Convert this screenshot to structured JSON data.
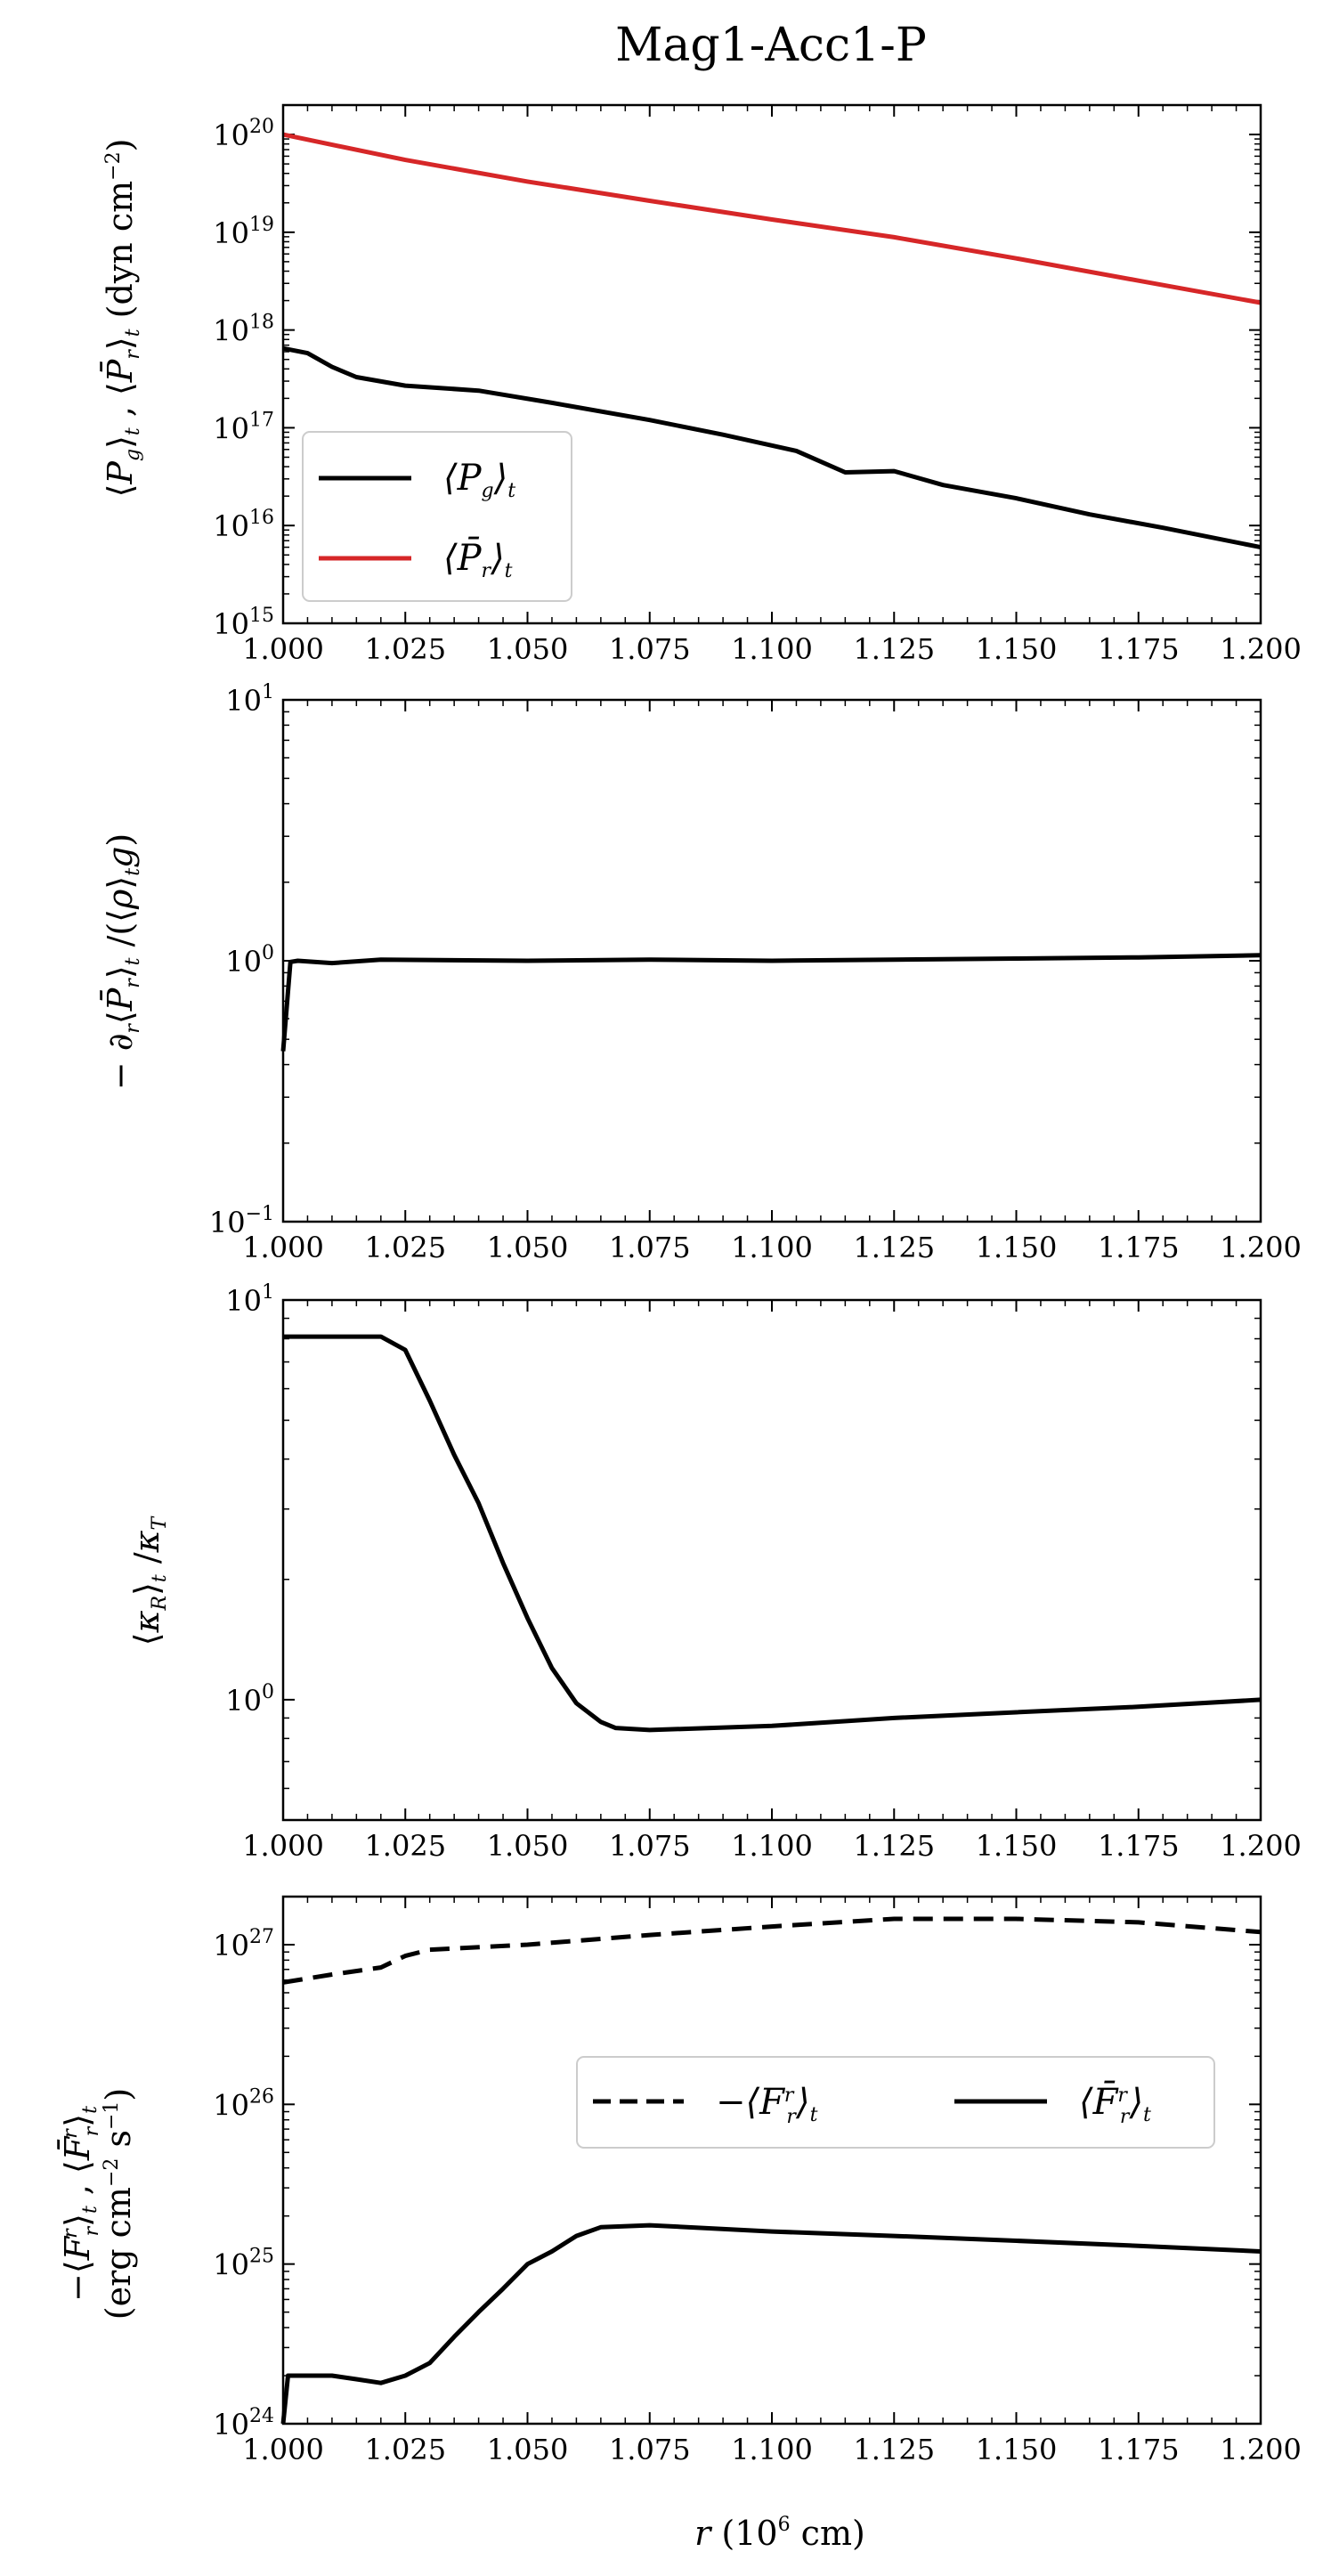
{
  "title": "Mag1-Acc1-P",
  "xlabel_main": "r",
  "xlabel_unit": " (10",
  "xlabel_exp": "6",
  "xlabel_tail": " cm)",
  "x_tick_labels": [
    "1.000",
    "1.025",
    "1.050",
    "1.075",
    "1.100",
    "1.125",
    "1.150",
    "1.175",
    "1.200"
  ],
  "colors": {
    "black": "#000000",
    "red": "#d62728"
  },
  "chart_data": [
    {
      "type": "line",
      "ylabel": "⟨P_g⟩_t , ⟨P̄_r⟩_t (dyn cm⁻²)",
      "yscale": "log",
      "xlim": [
        1.0,
        1.2
      ],
      "ylim": [
        1000000000000000.0,
        2e+20
      ],
      "y_tick_labels": [
        {
          "base": "10",
          "exp": "15",
          "value": 1000000000000000.0
        },
        {
          "base": "10",
          "exp": "16",
          "value": 1e+16
        },
        {
          "base": "10",
          "exp": "17",
          "value": 1e+17
        },
        {
          "base": "10",
          "exp": "18",
          "value": 1e+18
        },
        {
          "base": "10",
          "exp": "19",
          "value": 1e+19
        },
        {
          "base": "10",
          "exp": "20",
          "value": 1e+20
        }
      ],
      "legend": {
        "position": "lower-left",
        "entries": [
          "⟨P_g⟩_t",
          "⟨P̄_r⟩_t"
        ]
      },
      "series": [
        {
          "name": "⟨P_g⟩_t",
          "color": "#000000",
          "style": "solid",
          "x": [
            1.0,
            1.005,
            1.01,
            1.015,
            1.025,
            1.04,
            1.055,
            1.075,
            1.09,
            1.105,
            1.115,
            1.125,
            1.135,
            1.15,
            1.165,
            1.18,
            1.2
          ],
          "y": [
            6.5e+17,
            5.8e+17,
            4.2e+17,
            3.3e+17,
            2.7e+17,
            2.4e+17,
            1.8e+17,
            1.2e+17,
            8.5e+16,
            5.8e+16,
            3.5e+16,
            3.6e+16,
            2.6e+16,
            1.9e+16,
            1.3e+16,
            9500000000000000.0,
            6000000000000000.0
          ]
        },
        {
          "name": "⟨P̄_r⟩_t",
          "color": "#d62728",
          "style": "solid",
          "x": [
            1.0,
            1.025,
            1.05,
            1.075,
            1.1,
            1.125,
            1.15,
            1.175,
            1.2
          ],
          "y": [
            1e+20,
            5.5e+19,
            3.3e+19,
            2.1e+19,
            1.35e+19,
            8.9e+18,
            5.4e+18,
            3.2e+18,
            1.9e+18
          ]
        }
      ]
    },
    {
      "type": "line",
      "ylabel": "−∂_r⟨P̄_r⟩_t /(⟨ρ⟩_t g)",
      "yscale": "log",
      "xlim": [
        1.0,
        1.2
      ],
      "ylim": [
        0.1,
        10
      ],
      "y_tick_labels": [
        {
          "base": "10",
          "exp": "−1",
          "value": 0.1
        },
        {
          "base": "10",
          "exp": "0",
          "value": 1
        },
        {
          "base": "10",
          "exp": "1",
          "value": 10
        }
      ],
      "series": [
        {
          "color": "#000000",
          "style": "solid",
          "x": [
            1.0,
            1.0015,
            1.003,
            1.01,
            1.02,
            1.05,
            1.075,
            1.1,
            1.125,
            1.15,
            1.175,
            1.2
          ],
          "y": [
            0.45,
            0.99,
            1.0,
            0.98,
            1.01,
            1.0,
            1.01,
            1.0,
            1.01,
            1.02,
            1.03,
            1.05
          ]
        }
      ]
    },
    {
      "type": "line",
      "ylabel": "⟨κ_R⟩_t /κ_T",
      "yscale": "log",
      "xlim": [
        1.0,
        1.2
      ],
      "ylim": [
        0.5,
        10
      ],
      "y_tick_labels": [
        {
          "base": "10",
          "exp": "0",
          "value": 1
        },
        {
          "base": "10",
          "exp": "1",
          "value": 10
        }
      ],
      "series": [
        {
          "color": "#000000",
          "style": "solid",
          "x": [
            1.0,
            1.02,
            1.025,
            1.03,
            1.035,
            1.04,
            1.045,
            1.05,
            1.055,
            1.06,
            1.065,
            1.068,
            1.075,
            1.1,
            1.125,
            1.15,
            1.175,
            1.2
          ],
          "y": [
            8.1,
            8.1,
            7.5,
            5.6,
            4.1,
            3.1,
            2.2,
            1.6,
            1.2,
            0.98,
            0.88,
            0.85,
            0.84,
            0.86,
            0.9,
            0.93,
            0.96,
            1.0
          ]
        }
      ]
    },
    {
      "type": "line",
      "ylabel_line1": "−⟨F_r^r⟩_t , ⟨F̄_r^r⟩_t",
      "ylabel_line2": "(erg cm⁻² s⁻¹)",
      "yscale": "log",
      "xlim": [
        1.0,
        1.2
      ],
      "ylim": [
        1e+24,
        2e+27
      ],
      "y_tick_labels": [
        {
          "base": "10",
          "exp": "24",
          "value": 1e+24
        },
        {
          "base": "10",
          "exp": "25",
          "value": 1e+25
        },
        {
          "base": "10",
          "exp": "26",
          "value": 1e+26
        },
        {
          "base": "10",
          "exp": "27",
          "value": 1e+27
        }
      ],
      "legend": {
        "position": "center-right",
        "entries": [
          "−⟨F_r^r⟩_t",
          "⟨F̄_r^r⟩_t"
        ]
      },
      "series": [
        {
          "name": "−⟨F_r^r⟩_t",
          "color": "#000000",
          "style": "dashed",
          "x": [
            1.0,
            1.01,
            1.02,
            1.025,
            1.03,
            1.05,
            1.075,
            1.1,
            1.125,
            1.15,
            1.175,
            1.2
          ],
          "y": [
            5.8e+26,
            6.5e+26,
            7.2e+26,
            8.5e+26,
            9.3e+26,
            1e+27,
            1.15e+27,
            1.3e+27,
            1.45e+27,
            1.45e+27,
            1.38e+27,
            1.2e+27
          ]
        },
        {
          "name": "⟨F̄_r^r⟩_t",
          "color": "#000000",
          "style": "solid",
          "x": [
            1.0,
            1.001,
            1.01,
            1.015,
            1.02,
            1.025,
            1.03,
            1.035,
            1.04,
            1.045,
            1.05,
            1.055,
            1.06,
            1.065,
            1.075,
            1.1,
            1.125,
            1.15,
            1.175,
            1.2
          ],
          "y": [
            1e+24,
            2e+24,
            2e+24,
            1.9e+24,
            1.8e+24,
            2e+24,
            2.4e+24,
            3.5e+24,
            5e+24,
            7e+24,
            1e+25,
            1.2e+25,
            1.5e+25,
            1.7e+25,
            1.75e+25,
            1.6e+25,
            1.5e+25,
            1.4e+25,
            1.3e+25,
            1.2e+25
          ]
        }
      ]
    }
  ]
}
